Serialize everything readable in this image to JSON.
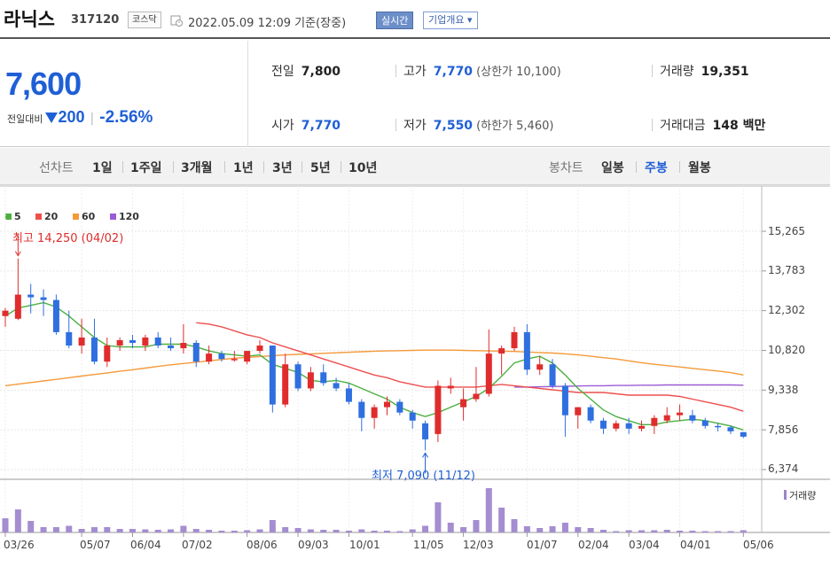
{
  "header": {
    "name": "라닉스",
    "code": "317120",
    "market": "코스닥",
    "datetime": "2022.05.09 12:09",
    "basis": "기준(장중)",
    "realtime_label": "실시간",
    "overview_label": "기업개요 ▾"
  },
  "quote": {
    "price": "7,600",
    "change_label": "전일대비",
    "change_value": "200",
    "change_rate": "-2.56%",
    "prev_close_label": "전일",
    "prev_close": "7,800",
    "open_label": "시가",
    "open": "7,770",
    "high_label": "고가",
    "high": "7,770",
    "upper_limit": "(상한가 10,100)",
    "low_label": "저가",
    "low": "7,550",
    "lower_limit": "(하한가 5,460)",
    "volume_label": "거래량",
    "volume": "19,351",
    "amount_label": "거래대금",
    "amount": "148 백만",
    "colors": {
      "down": "#1f5fd6",
      "up": "#e02c2c"
    }
  },
  "toolbar": {
    "line_label": "선차트",
    "line_periods": [
      "1일",
      "1주일",
      "3개월",
      "1년",
      "3년",
      "5년",
      "10년"
    ],
    "candle_label": "봉차트",
    "candle_periods": [
      "일봉",
      "주봉",
      "월봉"
    ],
    "candle_selected": "주봉"
  },
  "chart_data": {
    "type": "candlestick",
    "interval": "weekly",
    "legend": [
      {
        "name": "5",
        "color": "#4bb040"
      },
      {
        "name": "20",
        "color": "#ee4e4e"
      },
      {
        "name": "60",
        "color": "#f49a3a"
      },
      {
        "name": "120",
        "color": "#9b5bd6"
      }
    ],
    "y_ticks": [
      "15,265",
      "13,783",
      "12,302",
      "10,820",
      "9,338",
      "7,856",
      "6,374"
    ],
    "ylim": [
      6374,
      15265
    ],
    "x_tick_labels": [
      "03/26",
      "05/07",
      "06/04",
      "07/02",
      "08/06",
      "09/03",
      "10/01",
      "11/05",
      "12/03",
      "01/07",
      "02/04",
      "03/04",
      "04/01",
      "05/06"
    ],
    "x_tick_index": [
      0,
      6,
      10,
      14,
      19,
      23,
      27,
      32,
      36,
      41,
      45,
      49,
      53,
      58
    ],
    "annotations": {
      "high": {
        "text": "최고 14,250 (04/02)",
        "index": 1,
        "value": 14250
      },
      "low": {
        "text": "최저 7,090 (11/12)",
        "index": 33,
        "value": 7090
      }
    },
    "volume_label": "거래량",
    "candles": [
      [
        12100,
        12400,
        11700,
        12300
      ],
      [
        12000,
        14250,
        11950,
        12900
      ],
      [
        12900,
        13300,
        12200,
        12800
      ],
      [
        12800,
        13100,
        12100,
        12700
      ],
      [
        12700,
        12900,
        11400,
        11500
      ],
      [
        11500,
        12300,
        10900,
        11000
      ],
      [
        11000,
        12000,
        10700,
        11300
      ],
      [
        11300,
        12000,
        10300,
        10400
      ],
      [
        10400,
        11300,
        10200,
        11000
      ],
      [
        11000,
        11300,
        10800,
        11200
      ],
      [
        11200,
        11400,
        10900,
        11100
      ],
      [
        11000,
        11400,
        10800,
        11300
      ],
      [
        11300,
        11500,
        10900,
        11000
      ],
      [
        11000,
        11300,
        10800,
        10900
      ],
      [
        10900,
        11800,
        10700,
        11100
      ],
      [
        11100,
        11200,
        10200,
        10400
      ],
      [
        10400,
        11000,
        10300,
        10700
      ],
      [
        10700,
        10800,
        10400,
        10500
      ],
      [
        10500,
        10800,
        10400,
        10500
      ],
      [
        10400,
        10800,
        10300,
        10800
      ],
      [
        10800,
        11200,
        10700,
        11000
      ],
      [
        11000,
        11000,
        8500,
        8800
      ],
      [
        8800,
        10700,
        8700,
        10300
      ],
      [
        10300,
        10400,
        9300,
        9400
      ],
      [
        9400,
        10200,
        9300,
        10000
      ],
      [
        10000,
        10300,
        9500,
        9600
      ],
      [
        9600,
        9800,
        9300,
        9400
      ],
      [
        9400,
        9600,
        8800,
        8900
      ],
      [
        8900,
        9000,
        7800,
        8300
      ],
      [
        8300,
        8800,
        7900,
        8700
      ],
      [
        8700,
        9100,
        8400,
        8900
      ],
      [
        8900,
        9000,
        8400,
        8500
      ],
      [
        8500,
        8600,
        7900,
        8200
      ],
      [
        8100,
        8200,
        7090,
        7500
      ],
      [
        7700,
        9700,
        7400,
        9500
      ],
      [
        9400,
        9800,
        9200,
        9500
      ],
      [
        8700,
        9400,
        8200,
        9000
      ],
      [
        9000,
        10200,
        8900,
        9200
      ],
      [
        9200,
        11600,
        9100,
        10700
      ],
      [
        10700,
        11000,
        9900,
        10900
      ],
      [
        10900,
        11700,
        10800,
        11500
      ],
      [
        11500,
        11800,
        9900,
        10100
      ],
      [
        10100,
        10600,
        9900,
        10300
      ],
      [
        10300,
        10500,
        9400,
        9500
      ],
      [
        9500,
        9600,
        7600,
        8400
      ],
      [
        8400,
        8700,
        7900,
        8700
      ],
      [
        8700,
        8800,
        8100,
        8200
      ],
      [
        8200,
        8300,
        7700,
        7900
      ],
      [
        7900,
        8200,
        7800,
        8100
      ],
      [
        8100,
        8300,
        7700,
        7900
      ],
      [
        7900,
        8200,
        7800,
        8000
      ],
      [
        8000,
        8400,
        7700,
        8300
      ],
      [
        8200,
        8700,
        8100,
        8400
      ],
      [
        8400,
        8800,
        8200,
        8500
      ],
      [
        8400,
        8600,
        8100,
        8200
      ],
      [
        8200,
        8300,
        7900,
        8000
      ],
      [
        8000,
        8100,
        7800,
        7950
      ],
      [
        7950,
        8000,
        7700,
        7800
      ],
      [
        7770,
        7770,
        7550,
        7600
      ]
    ],
    "ma5": [
      12100,
      12400,
      12500,
      12600,
      12440,
      12100,
      11700,
      11300,
      11000,
      10950,
      10950,
      10950,
      11050,
      11050,
      11050,
      10950,
      10800,
      10700,
      10650,
      10600,
      10650,
      10300,
      10150,
      10000,
      9700,
      9650,
      9700,
      9600,
      9400,
      9200,
      9000,
      8700,
      8500,
      8350,
      8500,
      8700,
      8900,
      9100,
      9400,
      9850,
      10350,
      10500,
      10600,
      10350,
      9900,
      9400,
      9000,
      8600,
      8350,
      8200,
      8050,
      8050,
      8150,
      8200,
      8250,
      8200,
      8100,
      8000,
      7850
    ],
    "ma20": [
      null,
      null,
      null,
      null,
      null,
      null,
      null,
      null,
      null,
      null,
      null,
      null,
      null,
      null,
      null,
      11850,
      11800,
      11700,
      11550,
      11400,
      11300,
      11100,
      10950,
      10800,
      10650,
      10500,
      10350,
      10200,
      10050,
      9900,
      9800,
      9650,
      9550,
      9450,
      9450,
      9450,
      9450,
      9450,
      9500,
      9550,
      9500,
      9450,
      9400,
      9350,
      9300,
      9250,
      9250,
      9250,
      9200,
      9150,
      9150,
      9150,
      9150,
      9100,
      9000,
      8900,
      8800,
      8700,
      8550
    ],
    "ma60": [
      9500,
      9560,
      9620,
      9680,
      9740,
      9800,
      9860,
      9920,
      9980,
      10040,
      10100,
      10160,
      10220,
      10280,
      10330,
      10380,
      10430,
      10480,
      10530,
      10560,
      10590,
      10620,
      10650,
      10670,
      10690,
      10710,
      10730,
      10750,
      10770,
      10790,
      10800,
      10810,
      10820,
      10830,
      10830,
      10830,
      10820,
      10810,
      10800,
      10790,
      10780,
      10760,
      10740,
      10720,
      10690,
      10650,
      10600,
      10550,
      10500,
      10430,
      10360,
      10300,
      10250,
      10200,
      10150,
      10100,
      10050,
      9990,
      9900
    ],
    "ma120": [
      null,
      null,
      null,
      null,
      null,
      null,
      null,
      null,
      null,
      null,
      null,
      null,
      null,
      null,
      null,
      null,
      null,
      null,
      null,
      null,
      null,
      null,
      null,
      null,
      null,
      null,
      null,
      null,
      null,
      null,
      null,
      null,
      null,
      null,
      null,
      null,
      null,
      null,
      null,
      null,
      9450,
      9450,
      9460,
      9470,
      9480,
      9490,
      9500,
      9500,
      9510,
      9510,
      9520,
      9520,
      9530,
      9530,
      9530,
      9530,
      9530,
      9530,
      9520
    ],
    "volume": [
      0.32,
      0.52,
      0.26,
      0.12,
      0.12,
      0.15,
      0.08,
      0.12,
      0.12,
      0.08,
      0.08,
      0.07,
      0.06,
      0.07,
      0.15,
      0.08,
      0.06,
      0.04,
      0.04,
      0.05,
      0.07,
      0.28,
      0.12,
      0.1,
      0.07,
      0.06,
      0.06,
      0.04,
      0.07,
      0.04,
      0.04,
      0.03,
      0.07,
      0.15,
      0.68,
      0.22,
      0.12,
      0.28,
      1.0,
      0.56,
      0.3,
      0.14,
      0.1,
      0.14,
      0.22,
      0.12,
      0.1,
      0.06,
      0.03,
      0.05,
      0.05,
      0.05,
      0.06,
      0.04,
      0.04,
      0.03,
      0.03,
      0.03,
      0.05
    ]
  }
}
